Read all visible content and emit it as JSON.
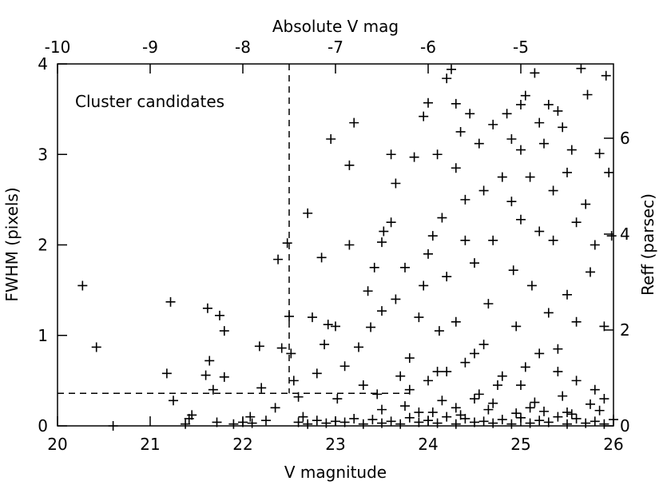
{
  "chart_data": {
    "type": "scatter",
    "xlabel": "V magnitude",
    "ylabel": "FWHM (pixels)",
    "x2label": "Absolute V mag",
    "y2label": "Reff (parsec)",
    "annotation": "Cluster candidates",
    "xlim": [
      20,
      26
    ],
    "xticks": [
      20,
      21,
      22,
      23,
      24,
      25,
      26
    ],
    "ylim": [
      0,
      4
    ],
    "yticks": [
      0,
      1,
      2,
      3,
      4
    ],
    "x2lim": [
      -10,
      -4
    ],
    "x2ticks": [
      -10,
      -9,
      -8,
      -7,
      -6,
      -5
    ],
    "y2lim": [
      0,
      7.55
    ],
    "y2ticks": [
      0,
      2,
      4,
      6
    ],
    "vline": {
      "x": 22.5,
      "y_start": 0.36
    },
    "hline": {
      "y": 0.36,
      "x_end": 23.8
    },
    "color": "#000000",
    "x": [
      20.27,
      20.42,
      20.6,
      21.18,
      21.22,
      21.25,
      21.38,
      21.42,
      21.45,
      21.6,
      21.62,
      21.64,
      21.68,
      21.72,
      21.75,
      21.8,
      21.8,
      21.9,
      22.0,
      22.08,
      22.1,
      22.18,
      22.2,
      22.25,
      22.35,
      22.38,
      22.42,
      22.48,
      22.5,
      22.52,
      22.55,
      22.6,
      22.65,
      22.7,
      22.75,
      22.8,
      22.85,
      22.88,
      22.92,
      22.95,
      23.0,
      23.02,
      23.1,
      23.15,
      23.15,
      23.2,
      23.25,
      23.3,
      23.35,
      23.38,
      23.42,
      23.45,
      23.5,
      23.5,
      23.52,
      23.6,
      23.6,
      23.65,
      23.65,
      23.7,
      23.75,
      23.8,
      23.85,
      23.9,
      23.95,
      23.95,
      24.0,
      24.0,
      24.05,
      24.1,
      24.1,
      24.12,
      24.15,
      24.2,
      24.2,
      24.25,
      24.3,
      24.3,
      24.3,
      24.35,
      24.4,
      24.4,
      24.45,
      24.5,
      24.5,
      24.55,
      24.6,
      24.65,
      24.7,
      24.7,
      24.75,
      24.8,
      24.85,
      24.9,
      24.9,
      24.92,
      24.95,
      25.0,
      25.0,
      25.0,
      25.05,
      25.05,
      25.1,
      25.12,
      25.15,
      25.2,
      25.2,
      25.25,
      25.3,
      25.3,
      25.35,
      25.35,
      25.4,
      25.4,
      25.45,
      25.5,
      25.5,
      25.55,
      25.6,
      25.6,
      25.65,
      25.7,
      25.72,
      25.75,
      25.8,
      25.85,
      25.9,
      25.92,
      25.95,
      25.98,
      23.5,
      23.8,
      24.0,
      24.2,
      24.4,
      24.6,
      24.8,
      25.0,
      25.2,
      25.4,
      25.6,
      25.8,
      24.5,
      24.7,
      25.1,
      25.5,
      25.9,
      24.3,
      23.9,
      22.6,
      22.8,
      23.0,
      23.2,
      23.4,
      23.6,
      23.8,
      24.0,
      24.2,
      24.4,
      24.6,
      24.8,
      25.0,
      25.2,
      25.4,
      25.6,
      25.8,
      26.0,
      22.7,
      22.9,
      23.1,
      23.3,
      23.5,
      23.7,
      23.9,
      24.1,
      24.3,
      24.5,
      24.7,
      24.9,
      25.1,
      25.3,
      25.5,
      25.7,
      25.9,
      24.05,
      24.35,
      24.65,
      24.95,
      25.25,
      25.55,
      25.85,
      23.75,
      24.15,
      24.55,
      25.15,
      25.45,
      25.75
    ],
    "values": [
      1.55,
      0.87,
      0.0,
      0.58,
      1.37,
      0.28,
      0.02,
      0.08,
      0.12,
      0.56,
      1.3,
      0.72,
      0.4,
      0.04,
      1.22,
      1.05,
      0.54,
      0.02,
      0.04,
      0.1,
      0.03,
      0.88,
      0.42,
      0.06,
      0.2,
      1.84,
      0.86,
      2.02,
      1.21,
      0.8,
      0.5,
      0.32,
      0.1,
      2.35,
      1.2,
      0.58,
      1.86,
      0.9,
      1.12,
      3.17,
      1.1,
      0.3,
      0.66,
      2.88,
      2.0,
      3.35,
      0.87,
      0.45,
      1.49,
      1.09,
      1.75,
      0.35,
      2.03,
      1.27,
      2.15,
      2.25,
      3.0,
      2.68,
      1.4,
      0.55,
      1.75,
      0.75,
      2.97,
      1.2,
      1.55,
      3.42,
      3.57,
      1.9,
      2.1,
      3.0,
      0.6,
      1.05,
      2.3,
      3.84,
      1.65,
      3.94,
      3.56,
      2.85,
      1.15,
      3.25,
      2.5,
      2.05,
      3.45,
      1.8,
      0.8,
      3.12,
      2.6,
      1.35,
      3.33,
      2.05,
      0.45,
      2.75,
      3.45,
      3.17,
      2.48,
      1.72,
      1.1,
      3.55,
      3.05,
      2.28,
      3.65,
      0.65,
      2.75,
      1.55,
      3.9,
      3.35,
      2.15,
      3.12,
      3.55,
      1.25,
      2.6,
      2.05,
      3.48,
      0.85,
      3.3,
      2.8,
      1.45,
      3.05,
      2.25,
      1.15,
      3.95,
      2.45,
      3.66,
      1.7,
      2.0,
      3.01,
      1.1,
      3.87,
      2.8,
      2.1,
      0.18,
      0.4,
      0.5,
      0.6,
      0.7,
      0.9,
      0.55,
      0.45,
      0.8,
      0.6,
      0.5,
      0.4,
      0.3,
      0.25,
      0.2,
      0.15,
      0.3,
      0.2,
      0.15,
      0.04,
      0.06,
      0.05,
      0.08,
      0.07,
      0.05,
      0.09,
      0.06,
      0.1,
      0.08,
      0.05,
      0.07,
      0.09,
      0.06,
      0.1,
      0.08,
      0.05,
      0.07,
      0.02,
      0.03,
      0.04,
      0.02,
      0.03,
      0.02,
      0.04,
      0.03,
      0.02,
      0.04,
      0.03,
      0.02,
      0.03,
      0.04,
      0.02,
      0.03,
      0.02,
      0.15,
      0.12,
      0.18,
      0.14,
      0.16,
      0.13,
      0.17,
      0.22,
      0.28,
      0.35,
      0.26,
      0.33,
      0.24
    ]
  }
}
